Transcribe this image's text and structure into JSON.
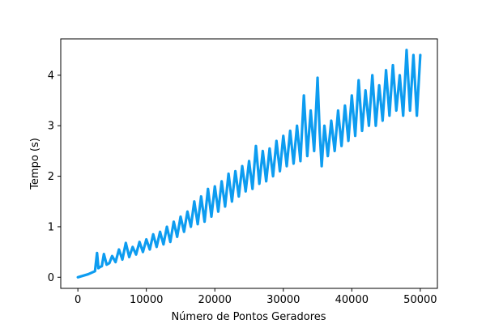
{
  "chart_data": {
    "type": "line",
    "title": "",
    "xlabel": "Número de Pontos Geradores",
    "ylabel": "Tempo (s)",
    "xlim": [
      -2500,
      52500
    ],
    "ylim": [
      -0.22,
      4.72
    ],
    "xticks": [
      0,
      10000,
      20000,
      30000,
      40000,
      50000
    ],
    "xtick_labels": [
      "0",
      "10000",
      "20000",
      "30000",
      "40000",
      "50000"
    ],
    "yticks": [
      0,
      1,
      2,
      3,
      4
    ],
    "ytick_labels": [
      "0",
      "1",
      "2",
      "3",
      "4"
    ],
    "grid": false,
    "legend": "none",
    "series": [
      {
        "color": "#0d9cf0",
        "x": [
          0,
          500,
          1000,
          1500,
          2000,
          2500,
          2800,
          3000,
          3200,
          3500,
          3800,
          4200,
          4600,
          5000,
          5500,
          6000,
          6500,
          7000,
          7500,
          8000,
          8500,
          9000,
          9500,
          10000,
          10500,
          11000,
          11500,
          12000,
          12500,
          13000,
          13500,
          14000,
          14500,
          15000,
          15500,
          16000,
          16500,
          17000,
          17500,
          18000,
          18500,
          19000,
          19500,
          20000,
          20500,
          21000,
          21500,
          22000,
          22500,
          23000,
          23500,
          24000,
          24500,
          25000,
          25500,
          26000,
          26500,
          27000,
          27500,
          28000,
          28500,
          29000,
          29500,
          30000,
          30500,
          31000,
          31500,
          32000,
          32500,
          33000,
          33500,
          34000,
          34500,
          35000,
          35300,
          35600,
          36000,
          36500,
          37000,
          37500,
          38000,
          38500,
          39000,
          39500,
          40000,
          40500,
          41000,
          41500,
          42000,
          42500,
          43000,
          43500,
          44000,
          44500,
          45000,
          45500,
          46000,
          46500,
          47000,
          47500,
          48000,
          48500,
          49000,
          49500,
          50000
        ],
        "y": [
          0.0,
          0.02,
          0.04,
          0.06,
          0.09,
          0.12,
          0.48,
          0.18,
          0.2,
          0.22,
          0.46,
          0.25,
          0.28,
          0.42,
          0.3,
          0.55,
          0.35,
          0.68,
          0.4,
          0.6,
          0.45,
          0.7,
          0.5,
          0.75,
          0.55,
          0.85,
          0.6,
          0.9,
          0.65,
          1.0,
          0.7,
          1.1,
          0.8,
          1.2,
          0.9,
          1.3,
          1.0,
          1.5,
          1.05,
          1.6,
          1.1,
          1.75,
          1.2,
          1.8,
          1.3,
          1.9,
          1.4,
          2.05,
          1.5,
          2.1,
          1.6,
          2.2,
          1.7,
          2.3,
          1.75,
          2.6,
          1.85,
          2.5,
          1.9,
          2.55,
          2.0,
          2.7,
          2.1,
          2.8,
          2.2,
          2.9,
          2.25,
          3.0,
          2.3,
          3.6,
          2.4,
          3.3,
          2.5,
          3.95,
          2.9,
          2.2,
          3.0,
          2.4,
          3.1,
          2.5,
          3.3,
          2.6,
          3.4,
          2.7,
          3.6,
          2.8,
          3.9,
          2.9,
          3.7,
          3.0,
          4.0,
          3.0,
          3.8,
          3.1,
          4.1,
          3.2,
          4.2,
          3.3,
          4.0,
          3.2,
          4.5,
          3.3,
          4.4,
          3.2,
          4.4
        ]
      }
    ]
  }
}
